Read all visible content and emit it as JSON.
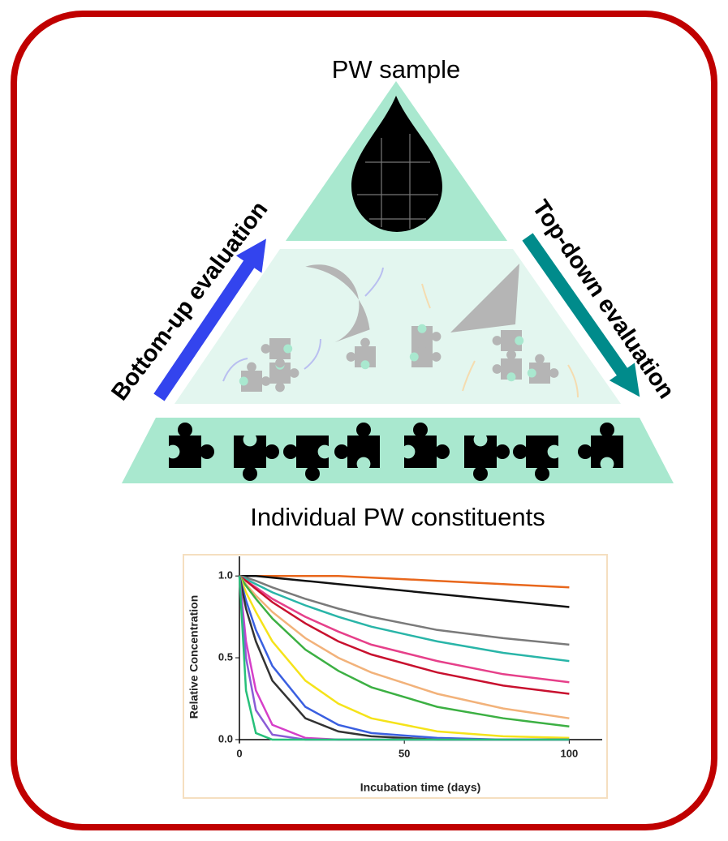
{
  "diagram": {
    "top_label": "PW sample",
    "left_arrow": "Bottom-up evaluation",
    "right_arrow": "Top-down evaluation",
    "bottom_label": "Individual PW constituents"
  },
  "chart_data": {
    "type": "line",
    "xlabel": "Incubation time (days)",
    "ylabel": "Relative Concentration",
    "xlim": [
      0,
      110
    ],
    "ylim": [
      -0.02,
      1.1
    ],
    "xticks": [
      0,
      50,
      100
    ],
    "yticks": [
      {
        "value": 0,
        "label": "0.0"
      },
      {
        "value": 0.5,
        "label": "0.5"
      },
      {
        "value": 1,
        "label": "1.0"
      }
    ],
    "x": [
      0,
      2,
      5,
      10,
      20,
      30,
      40,
      60,
      80,
      100
    ],
    "series": [
      {
        "color": "#e8671c",
        "values": [
          1,
          1,
          1,
          1,
          1,
          1,
          0.99,
          0.97,
          0.95,
          0.93
        ]
      },
      {
        "color": "#111111",
        "values": [
          1,
          1,
          1,
          0.99,
          0.97,
          0.95,
          0.93,
          0.89,
          0.85,
          0.81
        ]
      },
      {
        "color": "#7a7a7a",
        "values": [
          1,
          0.99,
          0.97,
          0.93,
          0.86,
          0.8,
          0.75,
          0.67,
          0.62,
          0.58
        ]
      },
      {
        "color": "#29b5a8",
        "values": [
          1,
          0.98,
          0.95,
          0.9,
          0.82,
          0.75,
          0.69,
          0.6,
          0.53,
          0.48
        ]
      },
      {
        "color": "#e6408a",
        "values": [
          1,
          0.97,
          0.93,
          0.86,
          0.75,
          0.66,
          0.58,
          0.48,
          0.4,
          0.35
        ]
      },
      {
        "color": "#c8102e",
        "values": [
          1,
          0.97,
          0.92,
          0.84,
          0.71,
          0.6,
          0.52,
          0.41,
          0.33,
          0.28
        ]
      },
      {
        "color": "#f2b27a",
        "values": [
          1,
          0.95,
          0.88,
          0.78,
          0.62,
          0.5,
          0.41,
          0.28,
          0.19,
          0.13
        ]
      },
      {
        "color": "#3cb043",
        "values": [
          1,
          0.94,
          0.86,
          0.74,
          0.55,
          0.42,
          0.32,
          0.2,
          0.13,
          0.08
        ]
      },
      {
        "color": "#f5e31a",
        "values": [
          1,
          0.9,
          0.78,
          0.6,
          0.36,
          0.22,
          0.13,
          0.05,
          0.02,
          0.01
        ]
      },
      {
        "color": "#3a5fe0",
        "values": [
          1,
          0.85,
          0.67,
          0.45,
          0.2,
          0.09,
          0.04,
          0.01,
          0,
          0
        ]
      },
      {
        "color": "#333333",
        "values": [
          1,
          0.8,
          0.6,
          0.36,
          0.13,
          0.05,
          0.02,
          0,
          0,
          0
        ]
      },
      {
        "color": "#d63fc9",
        "values": [
          1,
          0.6,
          0.3,
          0.09,
          0.01,
          0,
          0,
          0,
          0,
          0
        ]
      },
      {
        "color": "#8a5cd6",
        "values": [
          1,
          0.5,
          0.18,
          0.03,
          0,
          0,
          0,
          0,
          0,
          0
        ]
      },
      {
        "color": "#27c07a",
        "values": [
          1,
          0.3,
          0.04,
          0,
          0,
          0,
          0,
          0,
          0,
          0
        ]
      }
    ]
  }
}
